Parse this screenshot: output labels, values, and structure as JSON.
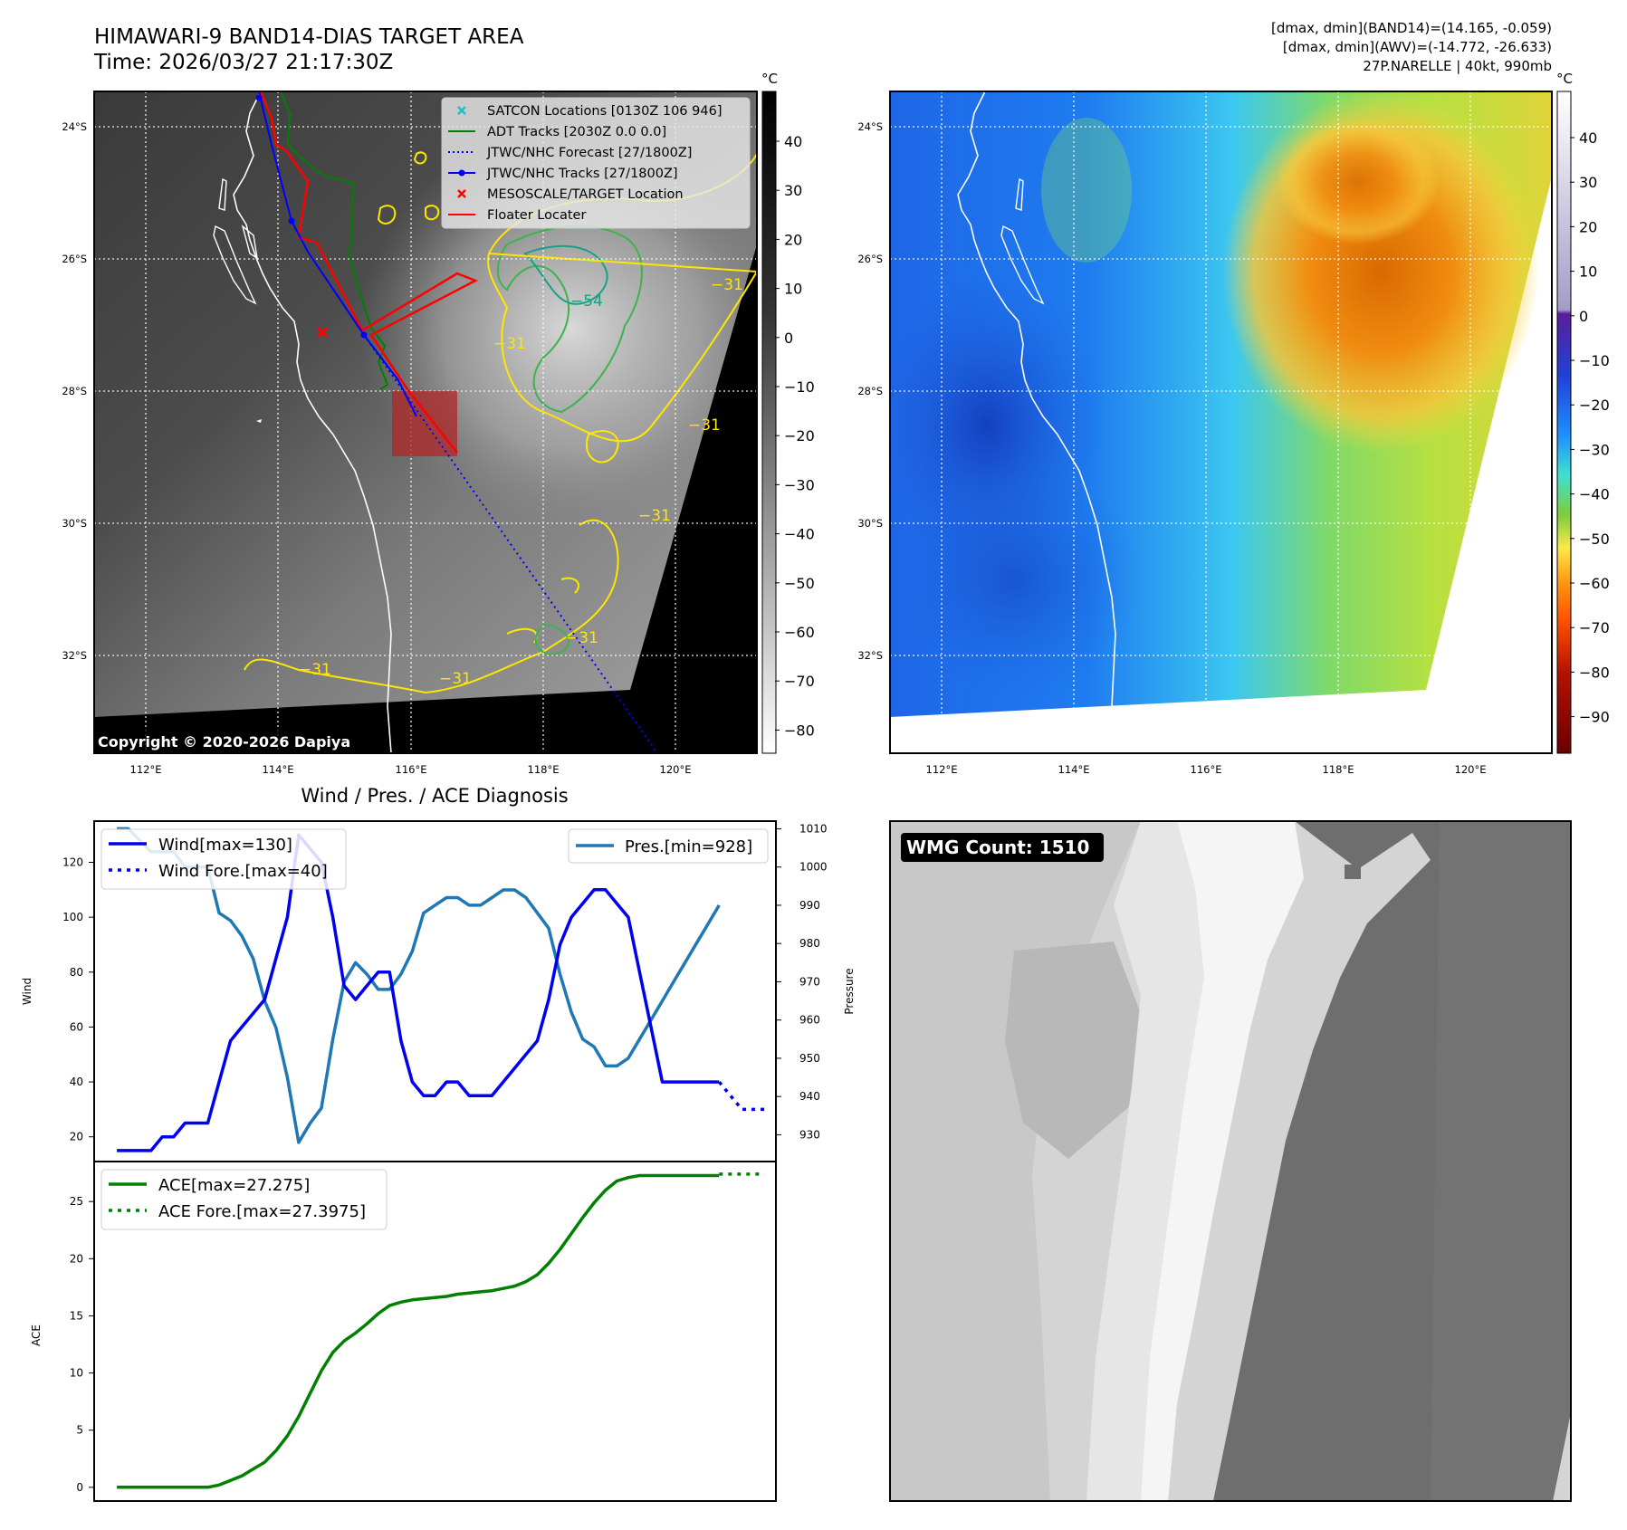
{
  "header": {
    "title_line1": "HIMAWARI-9 BAND14-DIAS TARGET AREA",
    "title_line2": "Time: 2026/03/27 21:17:30Z",
    "info_line1": "[dmax, dmin](BAND14)=(14.165, -0.059)",
    "info_line2": "[dmax, dmin](AWV)=(-14.772, -26.633)",
    "info_line3": "27P.NARELLE | 40kt, 990mb"
  },
  "map_common": {
    "lat_labels": [
      "24°S",
      "26°S",
      "28°S",
      "30°S",
      "32°S"
    ],
    "lon_labels": [
      "112°E",
      "114°E",
      "116°E",
      "118°E",
      "120°E"
    ],
    "colorbar_unit": "°C"
  },
  "ir_panel": {
    "colorbar_ticks": [
      "40",
      "30",
      "20",
      "10",
      "0",
      "−10",
      "−20",
      "−30",
      "−40",
      "−50",
      "−60",
      "−70",
      "−80"
    ],
    "contour_labels": [
      "−31",
      "−54",
      "−31",
      "−31",
      "−31",
      "−31",
      "−31",
      "−31"
    ],
    "copyright": "Copyright © 2020-2026 Dapiya",
    "legend": [
      {
        "label": "SATCON Locations [0130Z 106 946]",
        "color": "#17becf",
        "marker": "x"
      },
      {
        "label": "ADT Tracks [2030Z 0.0 0.0]",
        "color": "#008000",
        "marker": "line"
      },
      {
        "label": "JTWC/NHC Forecast [27/1800Z]",
        "color": "#0000ff",
        "marker": "dotted"
      },
      {
        "label": "JTWC/NHC Tracks [27/1800Z]",
        "color": "#0000ff",
        "marker": "line-dot"
      },
      {
        "label": "MESOSCALE/TARGET Location",
        "color": "#ff0000",
        "marker": "x"
      },
      {
        "label": "Floater Locater",
        "color": "#ff0000",
        "marker": "line"
      }
    ]
  },
  "awv_panel": {
    "colorbar_ticks": [
      "40",
      "30",
      "20",
      "10",
      "0",
      "−10",
      "−20",
      "−30",
      "−40",
      "−50",
      "−60",
      "−70",
      "−80",
      "−90"
    ]
  },
  "wmg_panel": {
    "badge": "WMG Count: 1510"
  },
  "colors": {
    "wind": "#0000ee",
    "pressure": "#1f77b4",
    "ace": "#008000",
    "contour_yellow": "#ffe600",
    "contour_green": "#3cb44b"
  },
  "chart_data": [
    {
      "type": "line",
      "title": "Wind / Pres. / ACE Diagnosis",
      "ylabel_left": "Wind",
      "ylabel_right": "Pressure",
      "left_ticks": [
        20,
        40,
        60,
        80,
        100,
        120
      ],
      "right_ticks": [
        930,
        940,
        950,
        960,
        970,
        980,
        990,
        1000,
        1010
      ],
      "y_range": [
        11,
        135
      ],
      "y2_range": [
        923,
        1012
      ],
      "x_range": [
        -2,
        58
      ],
      "series": [
        {
          "name": "Wind[max=130]",
          "axis": "left",
          "x": [
            0,
            2,
            3,
            4,
            5,
            6,
            7,
            8,
            9,
            10,
            11,
            12,
            13,
            14,
            15,
            16,
            17,
            18,
            19,
            20,
            21,
            22,
            23,
            24,
            25,
            26,
            27,
            28,
            29,
            30,
            31,
            32,
            33,
            34,
            35,
            36,
            37,
            38,
            39,
            40,
            41,
            42,
            43,
            44,
            45,
            46,
            47,
            48,
            49,
            50,
            51,
            52,
            53
          ],
          "values": [
            15,
            15,
            15,
            20,
            20,
            25,
            25,
            25,
            40,
            55,
            60,
            65,
            70,
            85,
            100,
            130,
            125,
            120,
            100,
            75,
            70,
            75,
            80,
            80,
            55,
            40,
            35,
            35,
            40,
            40,
            35,
            35,
            35,
            40,
            45,
            50,
            55,
            70,
            90,
            100,
            105,
            110,
            110,
            105,
            100,
            80,
            60,
            40,
            40,
            40,
            40,
            40,
            40
          ]
        },
        {
          "name": "Wind Fore.[max=40]",
          "axis": "left",
          "style": "dotted",
          "x": [
            53,
            54,
            55,
            56,
            57
          ],
          "values": [
            40,
            35,
            30,
            30,
            30
          ]
        },
        {
          "name": "Pres.[min=928]",
          "axis": "right",
          "x": [
            0,
            1,
            2,
            3,
            4,
            5,
            6,
            7,
            8,
            9,
            10,
            11,
            12,
            13,
            14,
            15,
            16,
            17,
            18,
            19,
            20,
            21,
            22,
            23,
            24,
            25,
            26,
            27,
            28,
            29,
            30,
            31,
            32,
            33,
            34,
            35,
            36,
            37,
            38,
            39,
            40,
            41,
            42,
            43,
            44,
            45,
            46,
            47,
            48,
            49,
            50,
            51,
            52,
            53
          ],
          "values": [
            1010,
            1010,
            1007,
            1004,
            1004,
            1004,
            1000,
            1000,
            1000,
            988,
            986,
            982,
            976,
            965,
            958,
            945,
            928,
            933,
            937,
            955,
            970,
            975,
            972,
            968,
            968,
            972,
            978,
            988,
            990,
            992,
            992,
            990,
            990,
            992,
            994,
            994,
            992,
            988,
            984,
            972,
            962,
            955,
            953,
            948,
            948,
            950,
            955,
            960,
            965,
            970,
            975,
            980,
            985,
            990
          ]
        }
      ]
    },
    {
      "type": "line",
      "ylabel": "ACE",
      "ticks": [
        0,
        5,
        10,
        15,
        20,
        25
      ],
      "y_range": [
        -1.2,
        28.5
      ],
      "x_range": [
        -2,
        58
      ],
      "series": [
        {
          "name": "ACE[max=27.275]",
          "x": [
            0,
            4,
            8,
            9,
            10,
            11,
            12,
            13,
            14,
            15,
            16,
            17,
            18,
            19,
            20,
            21,
            22,
            23,
            24,
            25,
            26,
            27,
            28,
            29,
            30,
            31,
            32,
            33,
            34,
            35,
            36,
            37,
            38,
            39,
            40,
            41,
            42,
            43,
            44,
            45,
            46,
            47,
            48,
            49,
            50,
            51,
            52,
            53
          ],
          "values": [
            0,
            0,
            0,
            0.2,
            0.6,
            1.0,
            1.6,
            2.2,
            3.2,
            4.5,
            6.2,
            8.2,
            10.2,
            11.8,
            12.8,
            13.5,
            14.3,
            15.2,
            15.9,
            16.2,
            16.4,
            16.5,
            16.6,
            16.7,
            16.9,
            17.0,
            17.1,
            17.2,
            17.4,
            17.6,
            18.0,
            18.6,
            19.6,
            20.8,
            22.2,
            23.6,
            24.9,
            26.0,
            26.8,
            27.1,
            27.275,
            27.275,
            27.275,
            27.275,
            27.275,
            27.275,
            27.275,
            27.275
          ]
        },
        {
          "name": "ACE Fore.[max=27.3975]",
          "style": "dotted",
          "x": [
            53,
            57
          ],
          "values": [
            27.3975,
            27.3975
          ]
        }
      ]
    }
  ]
}
